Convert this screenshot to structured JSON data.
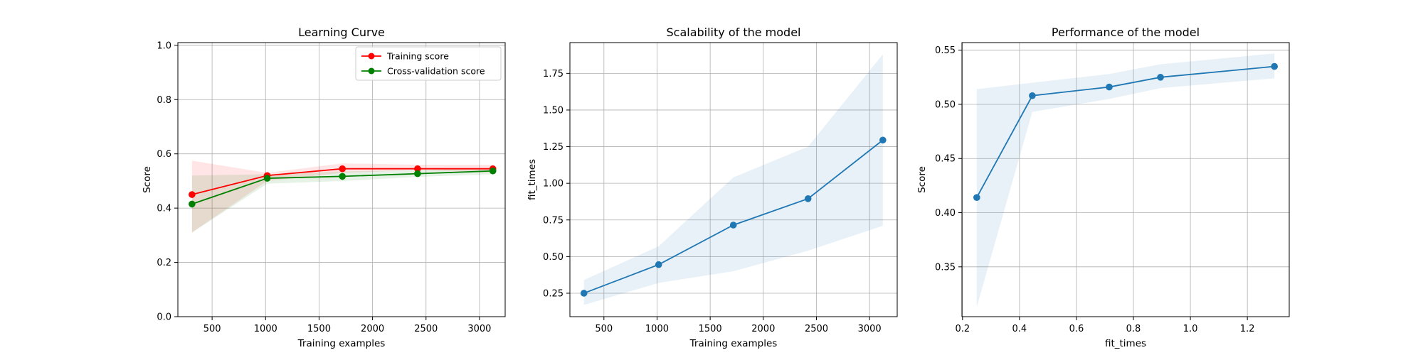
{
  "charts": [
    {
      "type": "line",
      "title": "Learning Curve",
      "xlabel": "Training examples",
      "ylabel": "Score",
      "xlim": [
        180,
        3240
      ],
      "ylim": [
        0.0,
        1.01
      ],
      "xticks": [
        500,
        1000,
        1500,
        2000,
        2500,
        3000
      ],
      "yticks": [
        0.0,
        0.2,
        0.4,
        0.6,
        0.8,
        1.0
      ],
      "grid": true,
      "legend": {
        "position": "top-right",
        "entries": [
          "Training score",
          "Cross-validation score"
        ]
      },
      "x": [
        312,
        1015,
        1718,
        2421,
        3125
      ],
      "series": [
        {
          "name": "Training score",
          "color": "#ff0000",
          "values": [
            0.45,
            0.52,
            0.545,
            0.545,
            0.545
          ],
          "band_low": [
            0.31,
            0.5,
            0.53,
            0.54,
            0.53
          ],
          "band_high": [
            0.575,
            0.53,
            0.565,
            0.56,
            0.56
          ]
        },
        {
          "name": "Cross-validation score",
          "color": "#008000",
          "values": [
            0.415,
            0.51,
            0.517,
            0.527,
            0.537
          ],
          "band_low": [
            0.31,
            0.49,
            0.5,
            0.515,
            0.525
          ],
          "band_high": [
            0.52,
            0.525,
            0.535,
            0.54,
            0.548
          ]
        }
      ]
    },
    {
      "type": "line",
      "title": "Scalability of the model",
      "xlabel": "Training examples",
      "ylabel": "fit_times",
      "xlim": [
        180,
        3260
      ],
      "ylim": [
        0.09,
        1.96
      ],
      "xticks": [
        500,
        1000,
        1500,
        2000,
        2500,
        3000
      ],
      "yticks": [
        0.25,
        0.5,
        0.75,
        1.0,
        1.25,
        1.5,
        1.75
      ],
      "grid": true,
      "x": [
        312,
        1015,
        1718,
        2421,
        3125
      ],
      "series": [
        {
          "color": "#1f77b4",
          "values": [
            0.25,
            0.445,
            0.715,
            0.895,
            1.295
          ],
          "band_low": [
            0.17,
            0.32,
            0.4,
            0.54,
            0.71
          ],
          "band_high": [
            0.34,
            0.57,
            1.04,
            1.25,
            1.88
          ]
        }
      ]
    },
    {
      "type": "line",
      "title": "Performance of the model",
      "xlabel": "fit_times",
      "ylabel": "Score",
      "xlim": [
        0.198,
        1.347
      ],
      "ylim": [
        0.304,
        0.557
      ],
      "xticks": [
        0.2,
        0.4,
        0.6,
        0.8,
        1.0,
        1.2
      ],
      "yticks": [
        0.35,
        0.4,
        0.45,
        0.5,
        0.55
      ],
      "grid": true,
      "x": [
        0.25,
        0.445,
        0.715,
        0.895,
        1.295
      ],
      "series": [
        {
          "color": "#1f77b4",
          "values": [
            0.414,
            0.508,
            0.516,
            0.525,
            0.535
          ],
          "band_low": [
            0.313,
            0.493,
            0.505,
            0.515,
            0.524
          ],
          "band_high": [
            0.514,
            0.52,
            0.528,
            0.537,
            0.547
          ]
        }
      ]
    }
  ],
  "chart_data": [
    {
      "type": "line",
      "title": "Learning Curve",
      "xlabel": "Training examples",
      "ylabel": "Score",
      "series": [
        {
          "name": "Training score",
          "x": [
            312,
            1015,
            1718,
            2421,
            3125
          ],
          "y": [
            0.45,
            0.52,
            0.545,
            0.545,
            0.545
          ]
        },
        {
          "name": "Cross-validation score",
          "x": [
            312,
            1015,
            1718,
            2421,
            3125
          ],
          "y": [
            0.415,
            0.51,
            0.517,
            0.527,
            0.537
          ]
        }
      ]
    },
    {
      "type": "line",
      "title": "Scalability of the model",
      "xlabel": "Training examples",
      "ylabel": "fit_times",
      "series": [
        {
          "x": [
            312,
            1015,
            1718,
            2421,
            3125
          ],
          "y": [
            0.25,
            0.445,
            0.715,
            0.895,
            1.295
          ]
        }
      ]
    },
    {
      "type": "line",
      "title": "Performance of the model",
      "xlabel": "fit_times",
      "ylabel": "Score",
      "series": [
        {
          "x": [
            0.25,
            0.445,
            0.715,
            0.895,
            1.295
          ],
          "y": [
            0.414,
            0.508,
            0.516,
            0.525,
            0.535
          ]
        }
      ]
    }
  ]
}
